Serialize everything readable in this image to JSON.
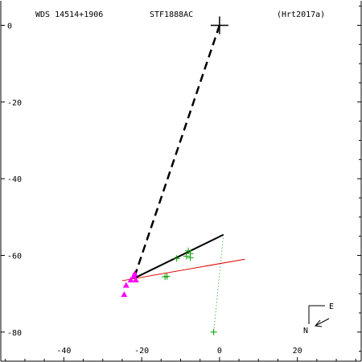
{
  "header": {
    "left": "WDS 14514+1906",
    "center": "STF1888AC",
    "right": "(Hrt2017a)"
  },
  "compass": {
    "east": "E",
    "north": "N"
  },
  "chart_data": {
    "type": "scatter",
    "x_ticks": [
      -40,
      -20,
      0,
      20
    ],
    "y_ticks": [
      0,
      -20,
      -40,
      -60,
      -80
    ],
    "xlim": [
      -56.4,
      36.6
    ],
    "ylim": [
      -87.8,
      6.6
    ],
    "grid": false,
    "primary": {
      "x": 0,
      "y": 0
    },
    "fitted_orbit": [
      [
        -22,
        -66
      ],
      [
        1,
        -54.6
      ]
    ],
    "red_line": [
      [
        -25,
        -66.6
      ],
      [
        6.5,
        -61
      ]
    ],
    "dashed_connector": [
      [
        0,
        0
      ],
      [
        -22,
        -66
      ]
    ],
    "dotted_connector": [
      [
        1,
        -54.6
      ],
      [
        -1.5,
        -80
      ]
    ],
    "green_points": [
      [
        -8,
        -58.8
      ],
      [
        -7.5,
        -59.5
      ],
      [
        -8.5,
        -60.2
      ],
      [
        -7.5,
        -60.6
      ],
      [
        -11,
        -60.8
      ],
      [
        -13.5,
        -65.5
      ],
      [
        -14,
        -65.6
      ],
      [
        -1.5,
        -80
      ]
    ],
    "magenta_points": [
      [
        -21.8,
        -64.8
      ],
      [
        -22,
        -65.4
      ],
      [
        -21.5,
        -66.4
      ],
      [
        -22.8,
        -66.4
      ],
      [
        -24,
        -67.8
      ],
      [
        -24.5,
        -70.2
      ]
    ]
  }
}
